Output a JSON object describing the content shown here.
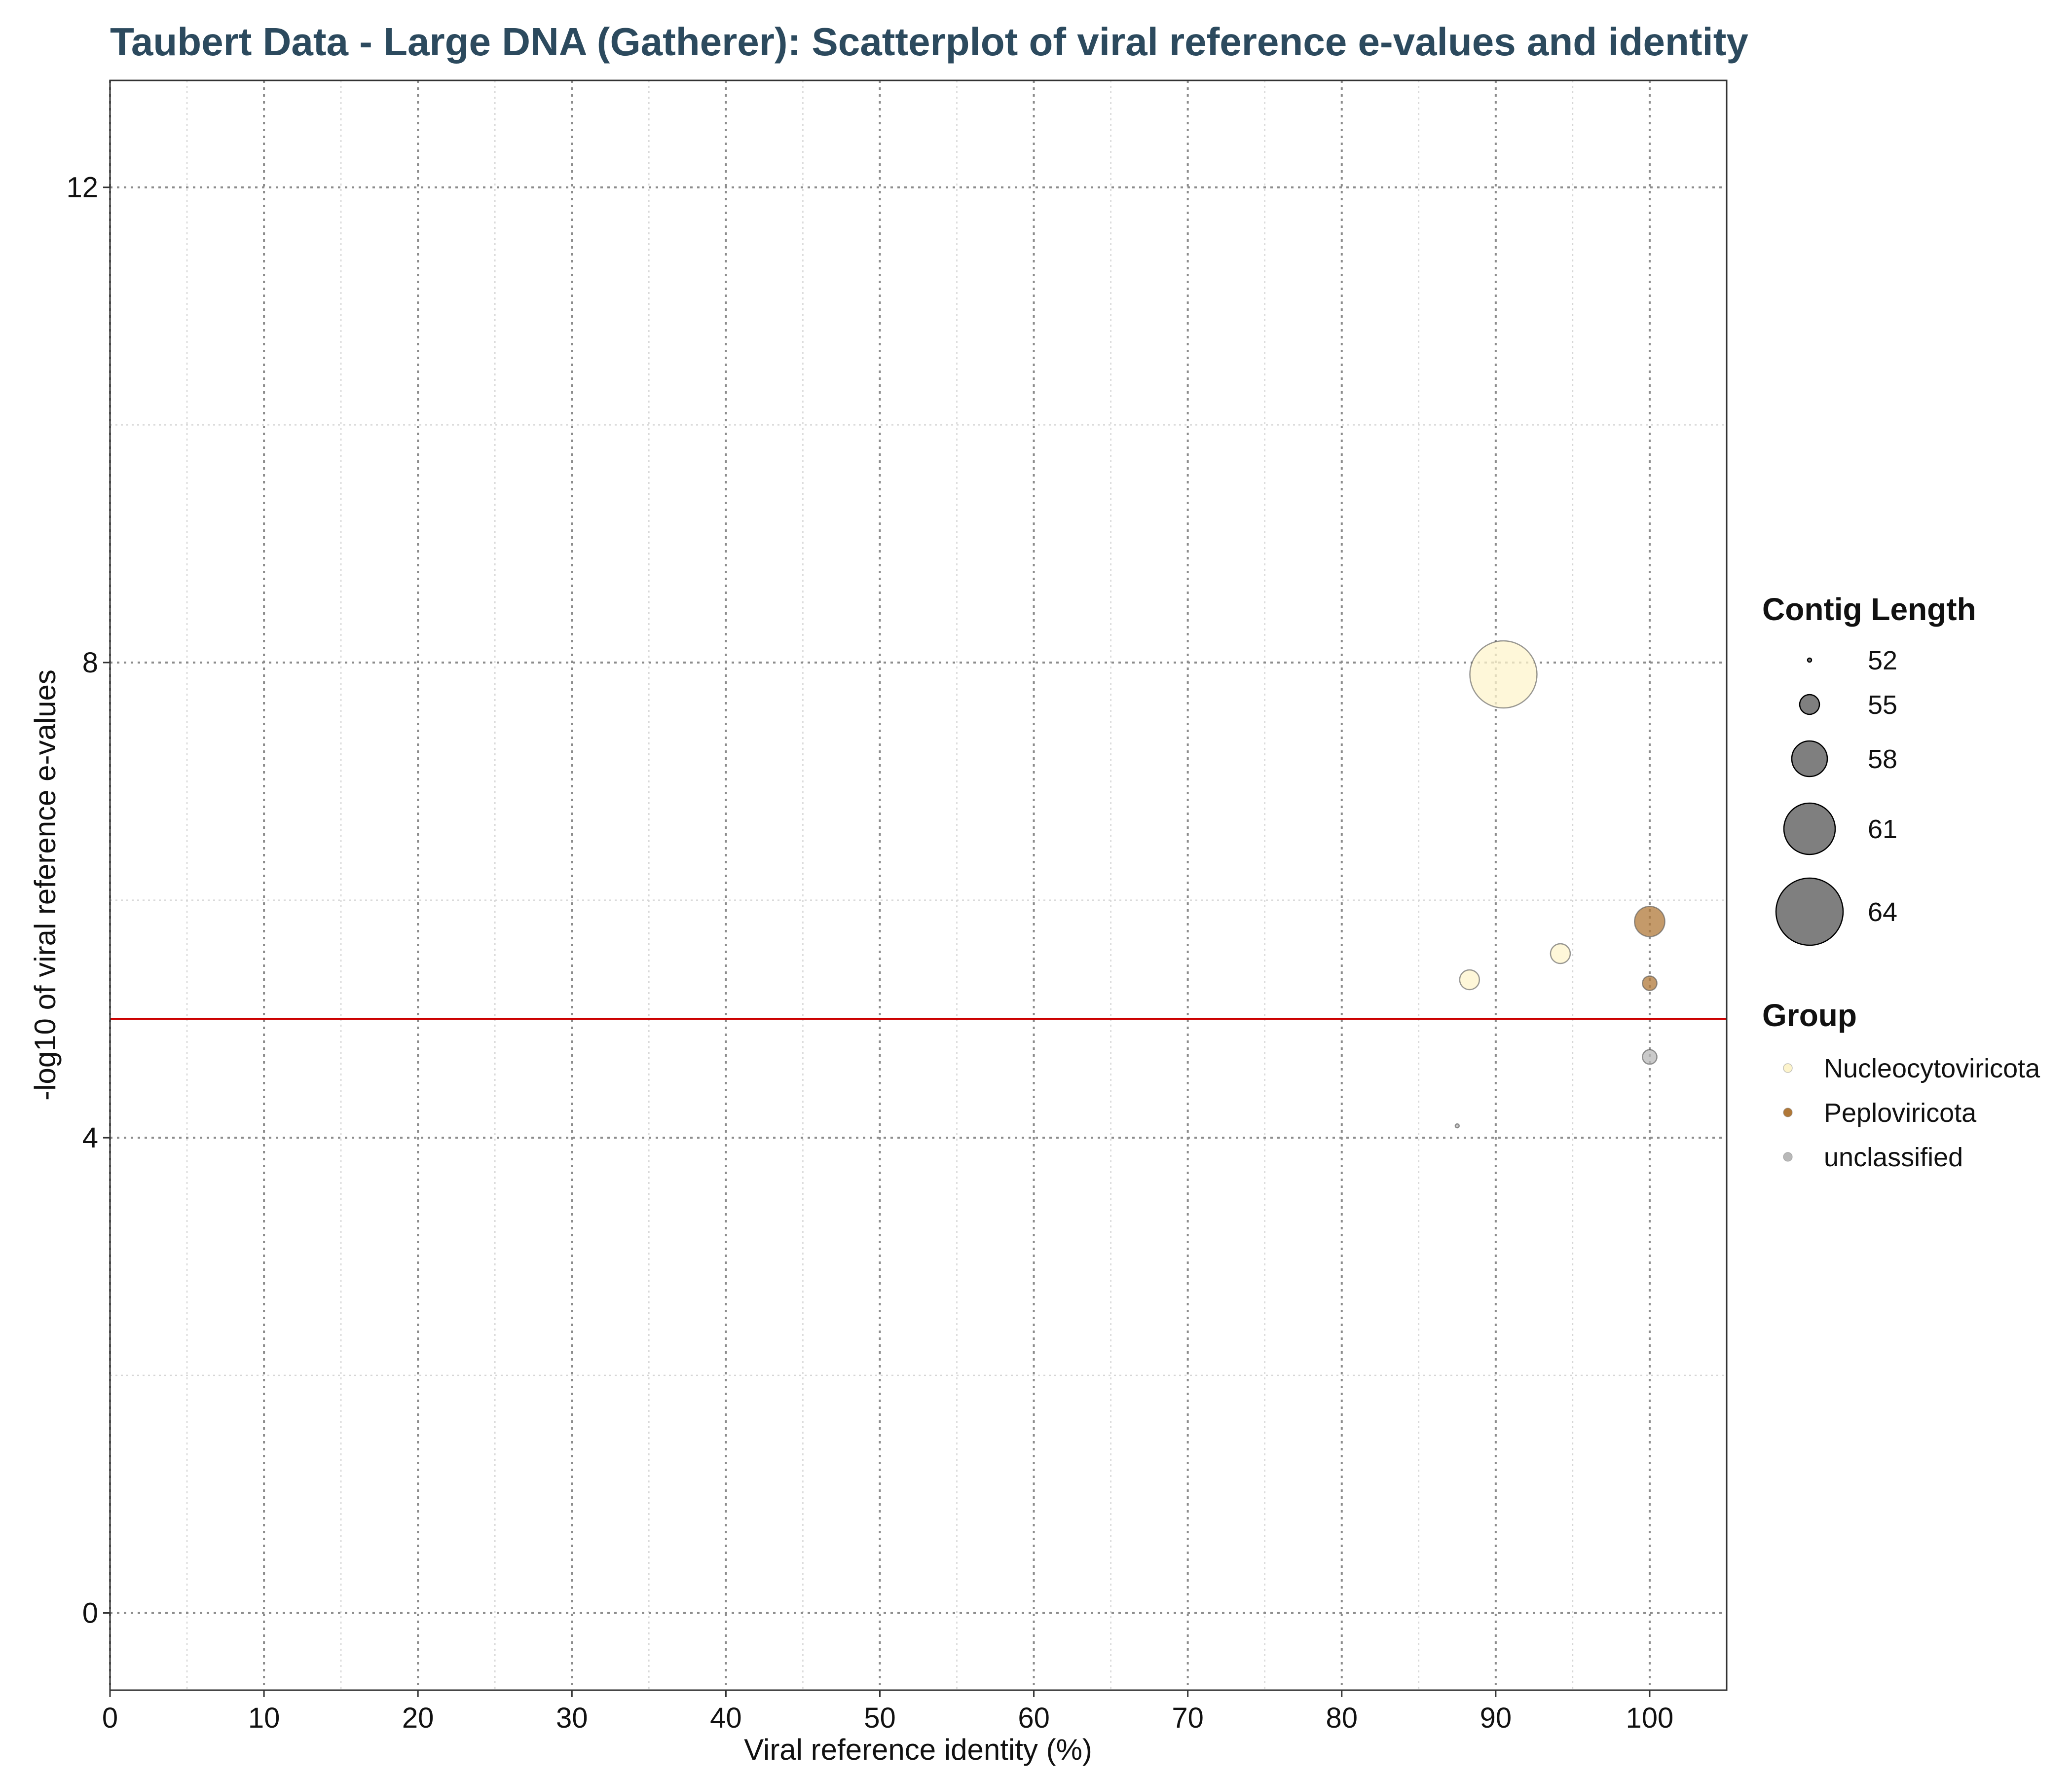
{
  "chart_data": {
    "type": "scatter",
    "title": "Taubert Data - Large DNA (Gatherer): Scatterplot of viral reference e-values and identity",
    "xlabel": "Viral reference identity (%)",
    "ylabel": "-log10 of viral reference e-values",
    "xlim": [
      0,
      105
    ],
    "ylim": [
      -0.65,
      12.9
    ],
    "x_ticks": [
      0,
      10,
      20,
      30,
      40,
      50,
      60,
      70,
      80,
      90,
      100
    ],
    "y_ticks": [
      0,
      4,
      8,
      12
    ],
    "grid": true,
    "threshold_line": {
      "y": 5.0,
      "color": "#cc0000"
    },
    "size_legend": {
      "title": "Contig Length",
      "values": [
        52,
        55,
        58,
        61,
        64
      ]
    },
    "size_range": [
      52,
      64
    ],
    "groups": [
      {
        "name": "Nucleocytoviricota",
        "color": "#fdf4cc"
      },
      {
        "name": "Peploviricota",
        "color": "#b07838"
      },
      {
        "name": "unclassified",
        "color": "#b8b8b8"
      }
    ],
    "color_legend_title": "Group",
    "points": [
      {
        "x": 90.5,
        "y": 7.9,
        "size": 64,
        "group": "Nucleocytoviricota"
      },
      {
        "x": 94.2,
        "y": 5.55,
        "size": 55,
        "group": "Nucleocytoviricota"
      },
      {
        "x": 88.3,
        "y": 5.33,
        "size": 55,
        "group": "Nucleocytoviricota"
      },
      {
        "x": 100.0,
        "y": 5.82,
        "size": 57,
        "group": "Peploviricota"
      },
      {
        "x": 100.0,
        "y": 5.3,
        "size": 54,
        "group": "Peploviricota"
      },
      {
        "x": 100.0,
        "y": 4.68,
        "size": 54,
        "group": "unclassified"
      },
      {
        "x": 87.5,
        "y": 4.1,
        "size": 52,
        "group": "unclassified"
      }
    ]
  }
}
